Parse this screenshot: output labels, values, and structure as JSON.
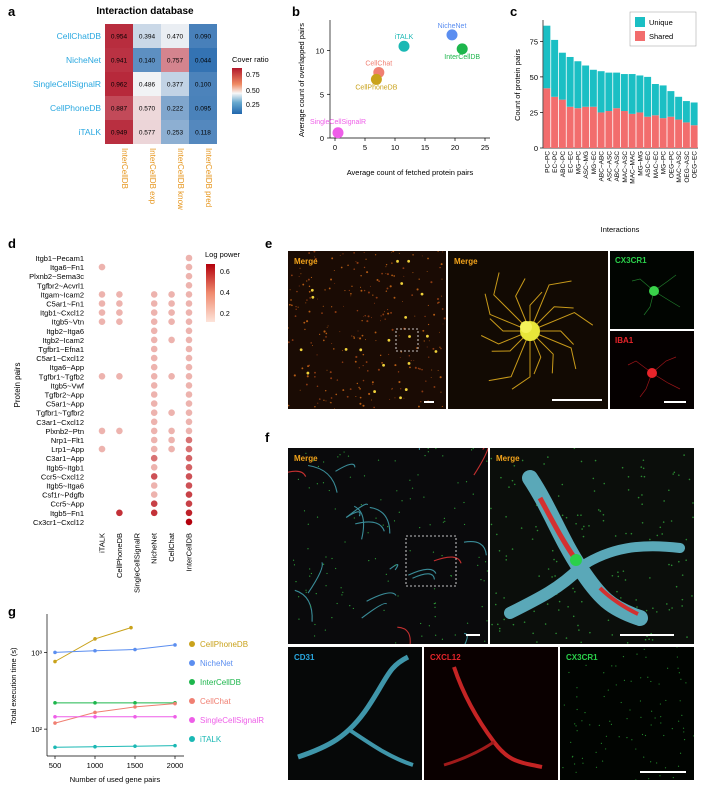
{
  "labels": {
    "a": "a",
    "b": "b",
    "c": "c",
    "d": "d",
    "e": "e",
    "f": "f",
    "g": "g"
  },
  "colors": {
    "CellChatDB": "#2aa8e0",
    "NicheNet": "#2aa8e0",
    "SingleCellSignalR": "#2aa8e0",
    "CellPhoneDB": "#2aa8e0",
    "iTALK": "#2aa8e0",
    "xlabel_orange": "#e6961e",
    "unique": "#1bbfc4",
    "shared": "#f26d6d",
    "dot_low": "#fbe0d6",
    "dot_high": "#b3000c",
    "merge_label": "#f2a31b",
    "cx3cr1_label": "#2ad04a",
    "iba1_label": "#e8242a",
    "cd31_label": "#2aa8e0",
    "cxcl12_label": "#e8242a"
  },
  "heatmap": {
    "title": "Interaction database",
    "rows": [
      "CellChatDB",
      "NicheNet",
      "SingleCellSignalR",
      "CellPhoneDB",
      "iTALK"
    ],
    "cols": [
      "InterCellDB",
      "InterCellDB exp",
      "InterCellDB know",
      "InterCellDB pred"
    ],
    "values": [
      [
        "0.954",
        "0.394",
        "0.470",
        "0.090"
      ],
      [
        "0.941",
        "0.140",
        "0.757",
        "0.044"
      ],
      [
        "0.962",
        "0.486",
        "0.377",
        "0.100"
      ],
      [
        "0.887",
        "0.570",
        "0.222",
        "0.095"
      ],
      [
        "0.949",
        "0.577",
        "0.253",
        "0.118"
      ]
    ],
    "legend_title": "Cover ratio",
    "legend_ticks": [
      "0.75",
      "0.50",
      "0.25"
    ]
  },
  "scatter": {
    "xlabel": "Average count of fetched protein pairs",
    "ylabel": "Average count of overlapped pairs",
    "xticks": [
      "0",
      "5",
      "10",
      "15",
      "20",
      "25"
    ],
    "yticks": [
      "0",
      "5",
      "10"
    ],
    "points": [
      {
        "name": "NicheNet",
        "label": "NicheNet",
        "color": "#5b8ef0"
      },
      {
        "name": "InterCellDB",
        "label": "InterCellDB",
        "color": "#1db64c"
      },
      {
        "name": "iTALK",
        "label": "iTALK",
        "color": "#1ab8b4"
      },
      {
        "name": "CellChat",
        "label": "CellChat",
        "color": "#f07f72"
      },
      {
        "name": "CellPhoneDB",
        "label": "CellPhoneDB",
        "color": "#c9a21b"
      },
      {
        "name": "SingleCellSignalR",
        "label": "SingleCellSignalR",
        "color": "#ee5ee8"
      }
    ]
  },
  "stacked": {
    "ylabel": "Count of protein pairs",
    "xlabel": "Interactions",
    "yticks": [
      "0",
      "25",
      "50",
      "75"
    ],
    "legend": [
      "Unique",
      "Shared"
    ],
    "categories": [
      "PC~PC",
      "EC~PC",
      "ABC~PC",
      "EC~EC",
      "MG~PC",
      "ASC~MG",
      "MG~EC",
      "ABC~ABC",
      "ASC~ASC",
      "ABC~ASC",
      "MAC~ASC",
      "MAC~MAC",
      "MG~MG",
      "ASC~EC",
      "MAC~EC",
      "MG~PC",
      "OEG~PC",
      "MAC~ASC",
      "OEG~ASC",
      "OEG~EC"
    ]
  },
  "dotplot": {
    "ylabel": "Protein pairs",
    "legend_title": "Log power",
    "legend_ticks": [
      "0.6",
      "0.4",
      "0.2"
    ],
    "cols": [
      "iTALK",
      "CellPhoneDB",
      "SingleCellSignalR",
      "NicheNet",
      "CellChat",
      "InterCellDB"
    ],
    "rows": [
      "Itgb1~Pecam1",
      "Itga6~Fn1",
      "Plxnb2~Sema3c",
      "Tgfbr2~Acvrl1",
      "Itgam~Icam2",
      "C5ar1~Fn1",
      "Itgb1~Cxcl12",
      "Itgb5~Vtn",
      "Itgb2~Itga6",
      "Itgb2~Icam2",
      "Tgfbr1~Efna1",
      "C5ar1~Cxcl12",
      "Itga6~App",
      "Tgfbr1~Tgfb2",
      "Itgb5~Vwf",
      "Tgfbr2~App",
      "C5ar1~App",
      "Tgfbr1~Tgfbr2",
      "C3ar1~Cxcl12",
      "Plxnb2~Ptn",
      "Nrp1~Flt1",
      "Lrp1~App",
      "C3ar1~App",
      "Itgb5~Itgb1",
      "Ccr5~Cxcl12",
      "Itgb5~Itga6",
      "Csf1r~Pdgfb",
      "Ccr5~App",
      "Itgb5~Fn1",
      "Cx3cr1~Cxcl12"
    ]
  },
  "panel_e": {
    "merge": "Merge",
    "cx3cr1": "CX3CR1",
    "iba1": "IBA1"
  },
  "panel_f": {
    "merge": "Merge",
    "cd31": "CD31",
    "cxcl12": "CXCL12",
    "cx3cr1": "CX3CR1"
  },
  "linechart": {
    "ylabel": "Total execution time (s)",
    "xlabel": "Number of used gene pairs",
    "xticks": [
      "500",
      "1000",
      "1500",
      "2000"
    ],
    "yticks": [
      "10³",
      "10²"
    ],
    "legend": [
      {
        "name": "CellPhoneDB",
        "color": "#c9a21b"
      },
      {
        "name": "NicheNet",
        "color": "#5b8ef0"
      },
      {
        "name": "InterCellDB",
        "color": "#1db64c"
      },
      {
        "name": "CellChat",
        "color": "#f07f72"
      },
      {
        "name": "SingleCellSignalR",
        "color": "#ee5ee8"
      },
      {
        "name": "iTALK",
        "color": "#1ab8b4"
      }
    ]
  }
}
